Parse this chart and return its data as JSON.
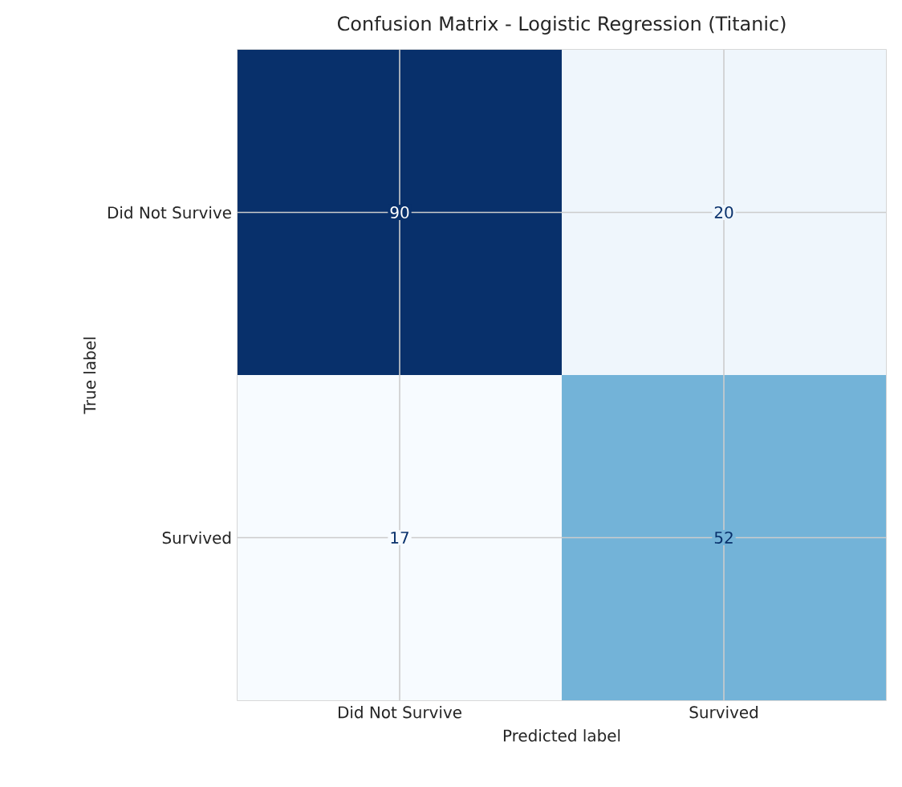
{
  "chart_data": {
    "type": "heatmap",
    "title": "Confusion Matrix - Logistic Regression (Titanic)",
    "xlabel": "Predicted label",
    "ylabel": "True label",
    "categories": [
      "Did Not Survive",
      "Survived"
    ],
    "y_categories": [
      "Did Not Survive",
      "Survived"
    ],
    "cells": [
      [
        90,
        20
      ],
      [
        17,
        52
      ]
    ],
    "data_labels": true,
    "grid": true
  }
}
